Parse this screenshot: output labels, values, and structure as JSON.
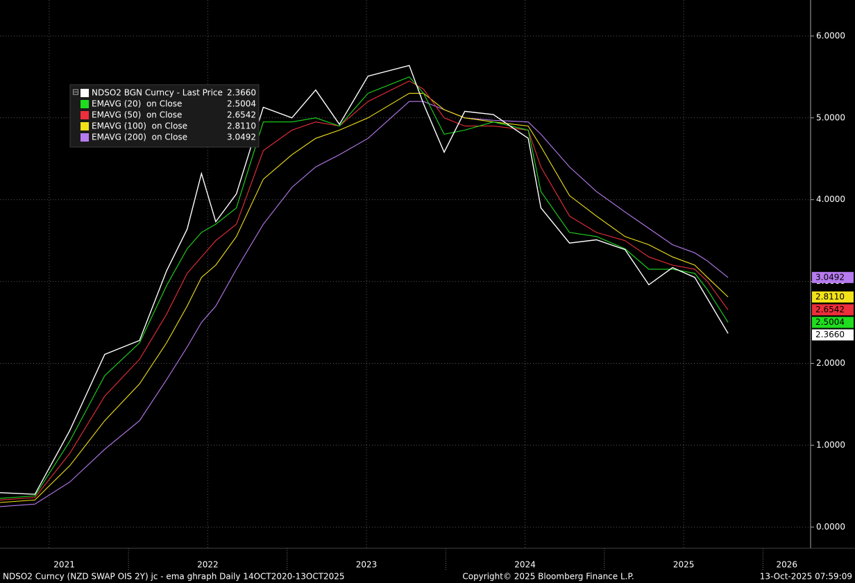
{
  "chart_data": {
    "type": "line",
    "x": [
      2021.19,
      2021.41,
      2021.63,
      2021.85,
      2022.07,
      2022.24,
      2022.37,
      2022.46,
      2022.55,
      2022.68,
      2022.85,
      2023.03,
      2023.18,
      2023.33,
      2023.51,
      2023.77,
      2023.86,
      2023.99,
      2024.12,
      2024.3,
      2024.52,
      2024.6,
      2024.78,
      2024.95,
      2025.13,
      2025.28,
      2025.43,
      2025.57,
      2025.65,
      2025.78
    ],
    "series": [
      {
        "name": "NDSO2 BGN Curncy - Last Price",
        "color": "#ffffff",
        "last_value_label": "2.3660",
        "values": [
          0.42,
          0.4,
          1.18,
          2.11,
          2.28,
          3.13,
          3.64,
          4.32,
          3.73,
          4.07,
          5.13,
          5.0,
          5.34,
          4.92,
          5.51,
          5.64,
          5.17,
          4.58,
          5.08,
          5.04,
          4.75,
          3.9,
          3.47,
          3.51,
          3.39,
          2.96,
          3.17,
          3.05,
          2.79,
          2.366
        ]
      },
      {
        "name": "EMAVG (20)  on Close",
        "color": "#1fdc1f",
        "last_value_label": "2.5004",
        "values": [
          0.35,
          0.38,
          1.05,
          1.85,
          2.25,
          2.95,
          3.4,
          3.6,
          3.7,
          3.9,
          4.95,
          4.95,
          5.0,
          4.9,
          5.3,
          5.5,
          5.3,
          4.8,
          4.85,
          4.95,
          4.85,
          4.1,
          3.6,
          3.55,
          3.4,
          3.15,
          3.15,
          3.1,
          2.9,
          2.5004
        ]
      },
      {
        "name": "EMAVG (50)  on Close",
        "color": "#ec2f3b",
        "last_value_label": "2.6542",
        "values": [
          0.33,
          0.36,
          0.9,
          1.6,
          2.05,
          2.6,
          3.1,
          3.3,
          3.5,
          3.7,
          4.6,
          4.85,
          4.95,
          4.9,
          5.2,
          5.45,
          5.35,
          5.0,
          4.9,
          4.9,
          4.85,
          4.4,
          3.8,
          3.6,
          3.5,
          3.3,
          3.2,
          3.15,
          3.0,
          2.6542
        ]
      },
      {
        "name": "EMAVG (100)  on Close",
        "color": "#f3e21a",
        "last_value_label": "2.8110",
        "values": [
          0.3,
          0.33,
          0.75,
          1.3,
          1.75,
          2.25,
          2.7,
          3.05,
          3.2,
          3.55,
          4.25,
          4.55,
          4.75,
          4.85,
          5.0,
          5.3,
          5.3,
          5.1,
          5.0,
          4.95,
          4.9,
          4.65,
          4.05,
          3.8,
          3.55,
          3.45,
          3.3,
          3.2,
          3.05,
          2.811
        ]
      },
      {
        "name": "EMAVG (200)  on Close",
        "color": "#b77bf0",
        "last_value_label": "3.0492",
        "values": [
          0.25,
          0.28,
          0.55,
          0.95,
          1.3,
          1.8,
          2.2,
          2.5,
          2.7,
          3.15,
          3.7,
          4.15,
          4.4,
          4.55,
          4.75,
          5.2,
          5.2,
          5.1,
          5.0,
          4.97,
          4.95,
          4.8,
          4.4,
          4.1,
          3.85,
          3.65,
          3.45,
          3.35,
          3.25,
          3.0492
        ]
      }
    ],
    "xlim": [
      2021.19,
      2026.3
    ],
    "xticks": [
      {
        "value": 2021,
        "label": "2021"
      },
      {
        "value": 2022,
        "label": "2022"
      },
      {
        "value": 2023,
        "label": "2023"
      },
      {
        "value": 2024,
        "label": "2024"
      },
      {
        "value": 2025,
        "label": "2025"
      },
      {
        "value": 2026,
        "label": "2026"
      }
    ],
    "ylim": [
      -0.26,
      6.44
    ],
    "yticks": [
      {
        "value": 0,
        "label": "0.0000"
      },
      {
        "value": 1,
        "label": "1.0000"
      },
      {
        "value": 2,
        "label": "2.0000"
      },
      {
        "value": 3,
        "label": "3.0000"
      },
      {
        "value": 4,
        "label": "4.0000"
      },
      {
        "value": 5,
        "label": "5.0000"
      },
      {
        "value": 6,
        "label": "6.0000"
      }
    ],
    "grid": true,
    "legend": "upper-left",
    "footer_left": "NDSO2 Curncy (NZD SWAP OIS 2Y) jc - ema ghraph Daily 14OCT2020-13OCT2025",
    "footer_center": "Copyright© 2025 Bloomberg Finance L.P.",
    "footer_right": "13-Oct-2025 07:59:09"
  }
}
